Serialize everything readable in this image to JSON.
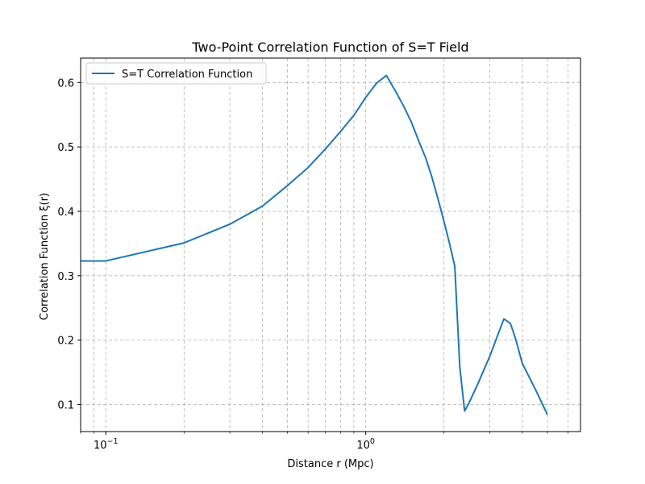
{
  "chart_data": {
    "type": "line",
    "title": "Two-Point Correlation Function of S=T Field",
    "xlabel": "Distance r (Mpc)",
    "ylabel": "Correlation Function ξ(r)",
    "xscale": "log",
    "xlim": [
      0.08,
      6.7
    ],
    "ylim": [
      0.058,
      0.638
    ],
    "grid": true,
    "legend_location": "upper-left",
    "x_ticks": [
      {
        "value": 0.1,
        "base": "10",
        "exp": "−1"
      },
      {
        "value": 1.0,
        "base": "10",
        "exp": "0"
      }
    ],
    "y_ticks": [
      {
        "value": 0.1,
        "label": "0.1"
      },
      {
        "value": 0.2,
        "label": "0.2"
      },
      {
        "value": 0.3,
        "label": "0.3"
      },
      {
        "value": 0.4,
        "label": "0.4"
      },
      {
        "value": 0.5,
        "label": "0.5"
      },
      {
        "value": 0.6,
        "label": "0.6"
      }
    ],
    "series": [
      {
        "name": "S=T Correlation Function",
        "color": "#1f77b4",
        "x": [
          0.08,
          0.1,
          0.2,
          0.3,
          0.4,
          0.5,
          0.6,
          0.7,
          0.8,
          0.9,
          1.0,
          1.1,
          1.2,
          1.3,
          1.4,
          1.5,
          1.6,
          1.7,
          1.8,
          1.9,
          2.0,
          2.1,
          2.2,
          2.3,
          2.4,
          2.5,
          2.6,
          2.7,
          2.8,
          3.0,
          3.2,
          3.4,
          3.6,
          3.7,
          3.8,
          4.0,
          4.5,
          5.0
        ],
        "y": [
          0.323,
          0.323,
          0.351,
          0.38,
          0.408,
          0.44,
          0.468,
          0.497,
          0.524,
          0.549,
          0.577,
          0.599,
          0.611,
          0.587,
          0.563,
          0.538,
          0.509,
          0.483,
          0.452,
          0.418,
          0.384,
          0.35,
          0.315,
          0.158,
          0.09,
          0.103,
          0.118,
          0.132,
          0.147,
          0.175,
          0.205,
          0.233,
          0.226,
          0.212,
          0.197,
          0.164,
          0.123,
          0.084
        ]
      }
    ]
  }
}
